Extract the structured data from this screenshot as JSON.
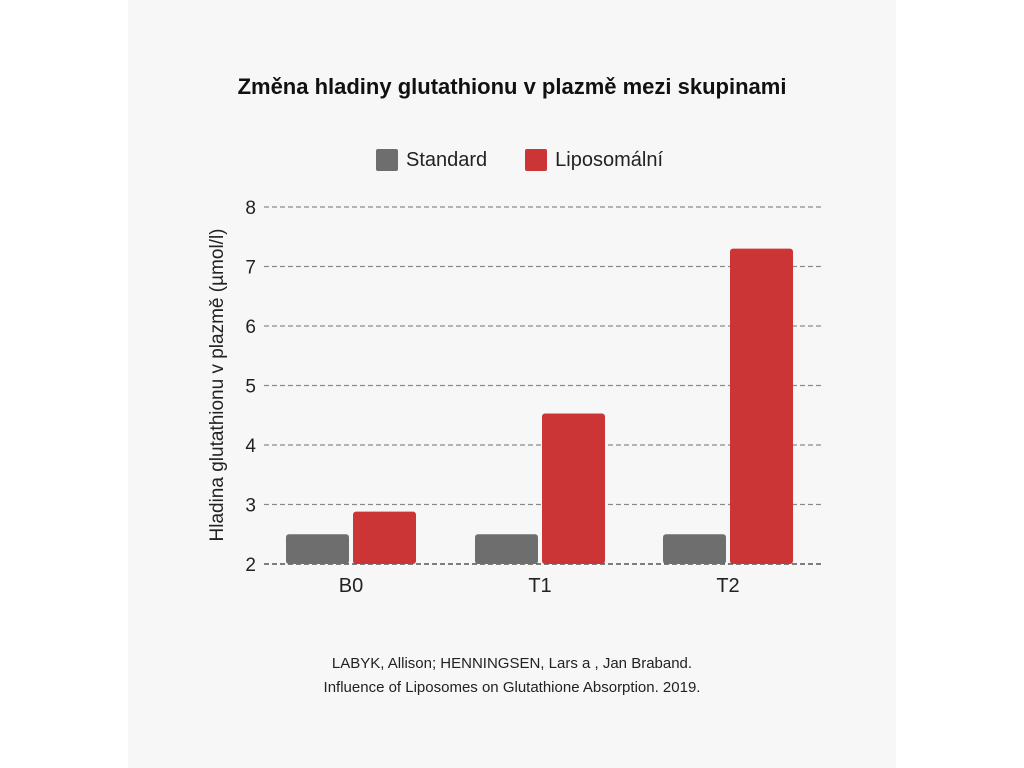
{
  "chart_data": {
    "type": "bar",
    "title": "Změna hladiny glutathionu v plazmě mezi skupinami",
    "xlabel": "",
    "ylabel": "Hladina glutathionu v plazmě (µmol/l)",
    "categories": [
      "B0",
      "T1",
      "T2"
    ],
    "series": [
      {
        "name": "Standard",
        "values": [
          2.5,
          2.5,
          2.5
        ],
        "color": "#6e6e6e"
      },
      {
        "name": "Liposomální",
        "values": [
          2.88,
          4.53,
          7.3
        ],
        "color": "#cc3535"
      }
    ],
    "ylim": [
      2,
      8
    ],
    "yticks": [
      "2",
      "3",
      "4",
      "5",
      "6",
      "7",
      "8"
    ],
    "grid": true,
    "legend_position": "top"
  },
  "citation": {
    "line1": "LABYK, Allison; HENNINGSEN, Lars a , Jan Braband.",
    "line2": "Influence of Liposomes on Glutathione Absorption. 2019."
  }
}
